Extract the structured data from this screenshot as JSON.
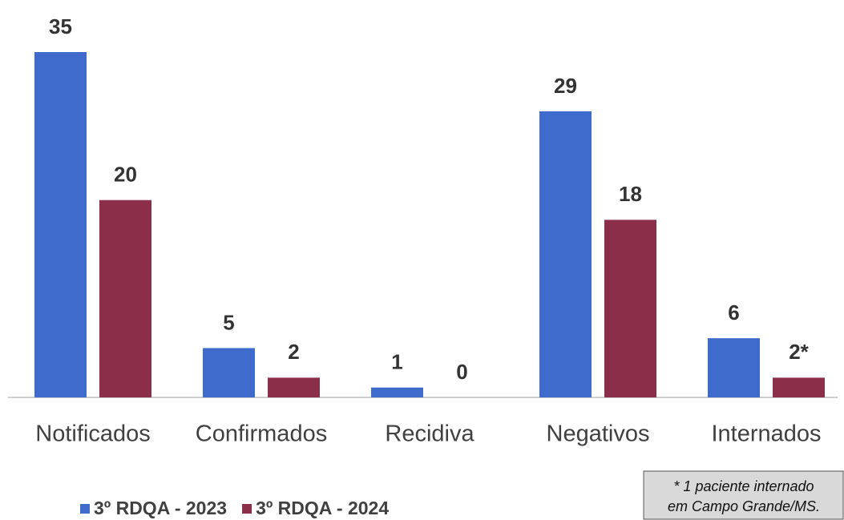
{
  "chart_data": {
    "type": "bar",
    "categories": [
      "Notificados",
      "Confirmados",
      "Recidiva",
      "Negativos",
      "Internados"
    ],
    "series": [
      {
        "name": "3º RDQA - 2023",
        "color": "#3e6bcc",
        "values": [
          35,
          5,
          1,
          29,
          6
        ]
      },
      {
        "name": "3º RDQA - 2024",
        "color": "#8b2e4a",
        "values": [
          20,
          2,
          0,
          18,
          2
        ],
        "value_labels": [
          "20",
          "2",
          "0",
          "18",
          "2*"
        ]
      }
    ],
    "legend": "bottom-left",
    "annotation": [
      "* 1 paciente internado",
      "em Campo Grande/MS."
    ]
  }
}
